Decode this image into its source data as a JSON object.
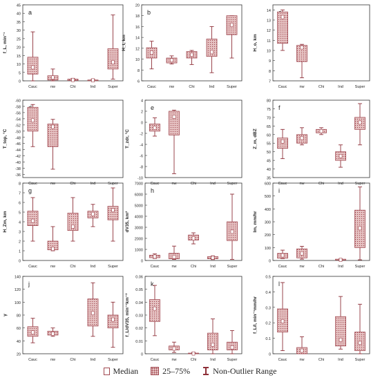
{
  "colors": {
    "box_fill": "#e6c3c3",
    "box_stroke": "#a0474f",
    "whisker": "#8e2f38",
    "axis": "#333333"
  },
  "legend": {
    "median": "Median",
    "box": "25–75%",
    "range": "Non-Outlier Range"
  },
  "chart_data": [
    {
      "type": "box",
      "panel": "a",
      "ylabel": "f_L, min⁻¹",
      "yticks": [
        0,
        5,
        10,
        15,
        20,
        25,
        30,
        35,
        40,
        45
      ],
      "ylim": [
        0,
        45
      ],
      "categories": [
        "Cauc",
        "nw",
        "Chi",
        "Ind",
        "Super"
      ],
      "boxes": [
        {
          "min": 0,
          "q1": 4,
          "median": 8,
          "q3": 14,
          "max": 29
        },
        {
          "min": 0,
          "q1": 0.5,
          "median": 2,
          "q3": 3,
          "max": 7
        },
        {
          "min": 0,
          "q1": 0.2,
          "median": 0.5,
          "q3": 1,
          "max": 1.5
        },
        {
          "min": 0,
          "q1": 0.1,
          "median": 0.3,
          "q3": 0.5,
          "max": 1
        },
        {
          "min": 1,
          "q1": 7,
          "median": 11,
          "q3": 19,
          "max": 39
        }
      ]
    },
    {
      "type": "box",
      "panel": "b",
      "ylabel": "H_t, km",
      "yticks": [
        6,
        8,
        10,
        12,
        14,
        16,
        18,
        20
      ],
      "ylim": [
        6,
        20
      ],
      "categories": [
        "Cauc",
        "nw",
        "Chi",
        "Ind",
        "Super"
      ],
      "boxes": [
        {
          "min": 8.2,
          "q1": 10.2,
          "median": 11.2,
          "q3": 12.1,
          "max": 13.3
        },
        {
          "min": 9.1,
          "q1": 9.3,
          "median": 9.8,
          "q3": 10.2,
          "max": 10.6
        },
        {
          "min": 9,
          "q1": 10.2,
          "median": 10.8,
          "q3": 11.4,
          "max": 11.6
        },
        {
          "min": 7.5,
          "q1": 10.5,
          "median": 11.3,
          "q3": 13.7,
          "max": 16
        },
        {
          "min": 10.2,
          "q1": 14.5,
          "median": 16.3,
          "q3": 18,
          "max": 18
        }
      ]
    },
    {
      "type": "box",
      "panel": "c",
      "ylabel": "H_o, km",
      "yticks": [
        7,
        8,
        9,
        10,
        11,
        12,
        13,
        14
      ],
      "ylim": [
        7,
        14.5
      ],
      "categories": [
        "Cauc",
        "nw",
        "Chi",
        "Ind",
        "Super"
      ],
      "boxes": [
        {
          "min": 10,
          "q1": 10.7,
          "median": 13.3,
          "q3": 13.8,
          "max": 14
        },
        {
          "min": 7.3,
          "q1": 8.9,
          "median": 10.3,
          "q3": 10.5,
          "max": 10.6
        },
        null,
        null,
        null
      ]
    },
    {
      "type": "box",
      "panel": "d",
      "ylabel": "T_top, °C",
      "yticks": [
        -60,
        -58,
        -56,
        -54,
        -52,
        -50,
        -48,
        -46,
        -44,
        -42,
        -40,
        -38,
        -36
      ],
      "ylim": [
        -60,
        -35
      ],
      "categories": [
        "Cauc",
        "nw",
        "Chi",
        "Ind",
        "Super"
      ],
      "inverted": true,
      "boxes": [
        {
          "min": -58.6,
          "q1": -57.7,
          "median": -53.5,
          "q3": -50,
          "max": -45
        },
        {
          "min": -53.8,
          "q1": -52.3,
          "median": -51.4,
          "q3": -45,
          "max": -37.7
        },
        null,
        null,
        null
      ]
    },
    {
      "type": "box",
      "panel": "e",
      "ylabel": "T_zdr, °C",
      "yticks": [
        -10,
        -8,
        -6,
        -4,
        -2,
        0,
        2,
        4
      ],
      "ylim": [
        -10,
        4
      ],
      "categories": [
        "Cauc",
        "nw",
        "Chi",
        "Ind",
        "Super"
      ],
      "boxes": [
        {
          "min": -2.5,
          "q1": -1.6,
          "median": -1,
          "q3": -0.3,
          "max": 0.8
        },
        {
          "min": -9.3,
          "q1": -2.3,
          "median": 1,
          "q3": 2,
          "max": 2.2
        },
        null,
        null,
        null
      ]
    },
    {
      "type": "box",
      "panel": "f",
      "ylabel": "Z_m, dBZ",
      "yticks": [
        35,
        40,
        45,
        50,
        55,
        60,
        65,
        70,
        75,
        80
      ],
      "ylim": [
        35,
        80
      ],
      "categories": [
        "Cauc",
        "nw",
        "Chi",
        "Ind",
        "Super"
      ],
      "boxes": [
        {
          "min": 46,
          "q1": 52,
          "median": 56,
          "q3": 58,
          "max": 63
        },
        {
          "min": 54,
          "q1": 55,
          "median": 58,
          "q3": 60,
          "max": 64
        },
        {
          "min": 60,
          "q1": 61,
          "median": 62,
          "q3": 63,
          "max": 64
        },
        {
          "min": 41,
          "q1": 45,
          "median": 47.5,
          "q3": 50,
          "max": 54
        },
        {
          "min": 54,
          "q1": 63,
          "median": 67,
          "q3": 70,
          "max": 78
        }
      ]
    },
    {
      "type": "box",
      "panel": "g",
      "ylabel": "H_Zm, km",
      "yticks": [
        0,
        1,
        2,
        3,
        4,
        5,
        6,
        7,
        8
      ],
      "ylim": [
        0,
        8
      ],
      "categories": [
        "Cauc",
        "nw",
        "Chi",
        "Ind",
        "Super"
      ],
      "boxes": [
        {
          "min": 2,
          "q1": 3.6,
          "median": 4.1,
          "q3": 5.1,
          "max": 6.5
        },
        {
          "min": 1,
          "q1": 1.1,
          "median": 1.2,
          "q3": 2,
          "max": 3.5
        },
        {
          "min": 2,
          "q1": 3.1,
          "median": 3.5,
          "q3": 4.9,
          "max": 6.5
        },
        {
          "min": 3.5,
          "q1": 4.4,
          "median": 4.8,
          "q3": 5.1,
          "max": 5.8
        },
        {
          "min": 2,
          "q1": 4.2,
          "median": 5.2,
          "q3": 5.6,
          "max": 7.5
        }
      ]
    },
    {
      "type": "box",
      "panel": "h",
      "ylabel": "dV35, km³",
      "yticks": [
        0,
        1000,
        2000,
        3000,
        4000,
        5000,
        6000,
        7000
      ],
      "ylim": [
        0,
        7000
      ],
      "categories": [
        "Cauc",
        "nw",
        "Chi",
        "Ind",
        "Super"
      ],
      "boxes": [
        {
          "min": 180,
          "q1": 250,
          "median": 350,
          "q3": 480,
          "max": 600
        },
        {
          "min": 100,
          "q1": 150,
          "median": 320,
          "q3": 650,
          "max": 1300
        },
        {
          "min": 1500,
          "q1": 1850,
          "median": 2000,
          "q3": 2300,
          "max": 2500
        },
        {
          "min": 80,
          "q1": 150,
          "median": 250,
          "q3": 350,
          "max": 420
        },
        {
          "min": 100,
          "q1": 1800,
          "median": 2600,
          "q3": 3500,
          "max": 6000
        }
      ]
    },
    {
      "type": "box",
      "panel": "i",
      "ylabel": "Im, mm/hr",
      "yticks": [
        0,
        100,
        200,
        300,
        400,
        500,
        600
      ],
      "ylim": [
        0,
        600
      ],
      "categories": [
        "Cauc",
        "nw",
        "Chi",
        "Ind",
        "Super"
      ],
      "boxes": [
        {
          "min": 15,
          "q1": 18,
          "median": 40,
          "q3": 55,
          "max": 80
        },
        {
          "min": 10,
          "q1": 20,
          "median": 55,
          "q3": 90,
          "max": 110
        },
        null,
        {
          "min": 0,
          "q1": 3,
          "median": 5,
          "q3": 10,
          "max": 12
        },
        {
          "min": 5,
          "q1": 100,
          "median": 250,
          "q3": 390,
          "max": 570
        }
      ]
    },
    {
      "type": "box",
      "panel": "j",
      "ylabel": "γ",
      "yticks": [
        20,
        40,
        60,
        80,
        100,
        120,
        140
      ],
      "ylim": [
        20,
        140
      ],
      "categories": [
        "Cauc",
        "nw",
        "Chi",
        "Ind",
        "Super"
      ],
      "boxes": [
        {
          "min": 37,
          "q1": 47,
          "median": 53,
          "q3": 62,
          "max": 75
        },
        {
          "min": 47,
          "q1": 49,
          "median": 51,
          "q3": 55,
          "max": 60
        },
        null,
        {
          "min": 47,
          "q1": 63,
          "median": 83,
          "q3": 105,
          "max": 130
        },
        {
          "min": 30,
          "q1": 60,
          "median": 73,
          "q3": 80,
          "max": 100
        }
      ]
    },
    {
      "type": "box",
      "panel": "k",
      "ylabel": "f_L/dV35, min⁻¹km⁻³",
      "yticks": [
        0,
        0.01,
        0.02,
        0.03,
        0.04,
        0.05,
        0.06
      ],
      "ylim": [
        0,
        0.06
      ],
      "categories": [
        "Cauc",
        "nw",
        "Chi",
        "Ind",
        "Super"
      ],
      "boxes": [
        {
          "min": 0.014,
          "q1": 0.025,
          "median": 0.035,
          "q3": 0.042,
          "max": 0.053
        },
        {
          "min": 0.001,
          "q1": 0.003,
          "median": 0.004,
          "q3": 0.006,
          "max": 0.009
        },
        {
          "min": 0,
          "q1": 0,
          "median": 0.0002,
          "q3": 0.0005,
          "max": 0.001
        },
        {
          "min": 0,
          "q1": 0.003,
          "median": 0.007,
          "q3": 0.016,
          "max": 0.027
        },
        {
          "min": 0,
          "q1": 0.003,
          "median": 0.005,
          "q3": 0.009,
          "max": 0.018
        }
      ]
    },
    {
      "type": "box",
      "panel": "l",
      "ylabel": "f_L/I, min⁻¹mm/hr",
      "yticks": [
        0,
        0.1,
        0.2,
        0.3,
        0.4,
        0.5
      ],
      "ylim": [
        0,
        0.5
      ],
      "categories": [
        "Cauc",
        "nw",
        "Chi",
        "Ind",
        "Super"
      ],
      "boxes": [
        {
          "min": 0.02,
          "q1": 0.14,
          "median": 0.21,
          "q3": 0.29,
          "max": 0.46
        },
        {
          "min": 0,
          "q1": 0,
          "median": 0.02,
          "q3": 0.04,
          "max": 0.11
        },
        null,
        {
          "min": 0.03,
          "q1": 0.05,
          "median": 0.09,
          "q3": 0.24,
          "max": 0.37
        },
        {
          "min": 0,
          "q1": 0.02,
          "median": 0.07,
          "q3": 0.14,
          "max": 0.32
        }
      ]
    }
  ]
}
